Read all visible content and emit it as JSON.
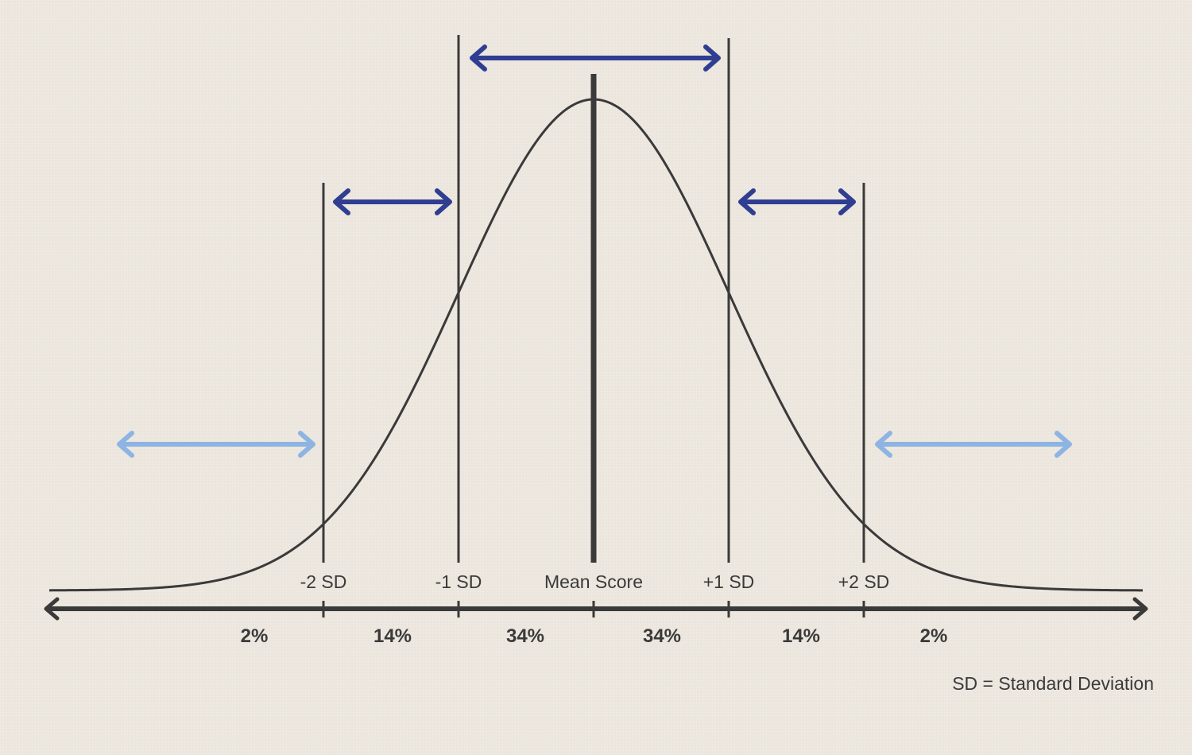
{
  "diagram": {
    "sd_labels": [
      "-2 SD",
      "-1 SD",
      "Mean Score",
      "+1 SD",
      "+2 SD"
    ],
    "percent_labels": [
      "2%",
      "14%",
      "34%",
      "34%",
      "14%",
      "2%"
    ],
    "legend": "SD = Standard Deviation",
    "colors": {
      "background": "#ebe5dd",
      "curve": "#3a3a3a",
      "dark_arrow": "#2f3e91",
      "light_arrow": "#8db4e2"
    }
  }
}
